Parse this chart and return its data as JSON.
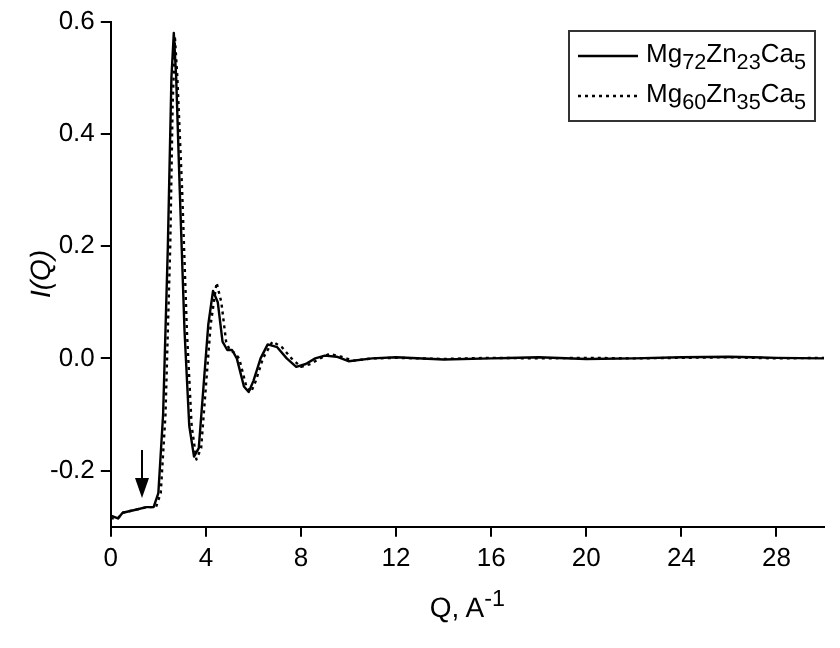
{
  "chart_data": {
    "type": "line",
    "xlabel": "Q, A$^{-1}$",
    "ylabel": "I(Q)",
    "xlim": [
      0,
      30
    ],
    "xticks": [
      0,
      4,
      8,
      12,
      16,
      20,
      24,
      28
    ],
    "ylim": [
      -0.3,
      0.6
    ],
    "yticks": [
      -0.2,
      {
        "value": 0,
        "label": "0.0"
      },
      0.2,
      0.4,
      0.6
    ],
    "grid": false,
    "legend": "top right",
    "marker": "none",
    "series": [
      {
        "name": "Mg$_{72}$Zn$_{23}$Ca$_{5}$",
        "color": "#000000",
        "line_style": "solid",
        "x": [
          0,
          0.3,
          0.5,
          1,
          1.5,
          1.8,
          2.0,
          2.2,
          2.4,
          2.55,
          2.65,
          2.75,
          2.9,
          3.1,
          3.3,
          3.5,
          3.7,
          3.9,
          4.1,
          4.3,
          4.5,
          4.7,
          4.9,
          5.1,
          5.3,
          5.6,
          5.8,
          6.0,
          6.3,
          6.6,
          7.0,
          7.4,
          7.8,
          8.2,
          8.6,
          9,
          9.5,
          10,
          11,
          12,
          14,
          16,
          18,
          20,
          22,
          24,
          26,
          28,
          30
        ],
        "values": [
          -0.28,
          -0.285,
          -0.275,
          -0.27,
          -0.265,
          -0.265,
          -0.24,
          -0.1,
          0.2,
          0.5,
          0.58,
          0.5,
          0.3,
          0.05,
          -0.12,
          -0.175,
          -0.16,
          -0.05,
          0.06,
          0.12,
          0.1,
          0.03,
          0.015,
          0.015,
          0.0,
          -0.05,
          -0.06,
          -0.04,
          0.0,
          0.025,
          0.02,
          0.0,
          -0.015,
          -0.01,
          0.0,
          0.005,
          0.003,
          -0.005,
          0.0,
          0.002,
          -0.002,
          0.0,
          0.002,
          -0.001,
          0.0,
          0.002,
          0.003,
          0.001,
          0.0
        ]
      },
      {
        "name": "Mg$_{60}$Zn$_{35}$Ca$_{5}$",
        "color": "#000000",
        "line_style": "dotted",
        "x": [
          0,
          0.3,
          0.5,
          1,
          1.5,
          1.9,
          2.1,
          2.3,
          2.5,
          2.6,
          2.7,
          2.8,
          3.0,
          3.2,
          3.4,
          3.6,
          3.8,
          4.0,
          4.2,
          4.45,
          4.65,
          4.85,
          5.0,
          5.2,
          5.4,
          5.7,
          5.9,
          6.1,
          6.4,
          6.8,
          7.2,
          7.6,
          8.0,
          8.4,
          8.8,
          9.2,
          9.7,
          10.2,
          11,
          12,
          14,
          16,
          18,
          20,
          22,
          24,
          26,
          28,
          30
        ],
        "values": [
          -0.285,
          -0.285,
          -0.275,
          -0.27,
          -0.265,
          -0.265,
          -0.24,
          -0.1,
          0.2,
          0.45,
          0.57,
          0.5,
          0.3,
          0.05,
          -0.12,
          -0.18,
          -0.16,
          -0.05,
          0.06,
          0.135,
          0.1,
          0.03,
          0.015,
          0.01,
          0.0,
          -0.05,
          -0.06,
          -0.04,
          0.0,
          0.03,
          0.02,
          0.0,
          -0.015,
          -0.01,
          0.0,
          0.008,
          0.003,
          -0.004,
          0.0,
          0.001,
          -0.001,
          0.001,
          0.0,
          0.001,
          0.0,
          0.001,
          0.002,
          0.0,
          0.001
        ]
      }
    ]
  }
}
